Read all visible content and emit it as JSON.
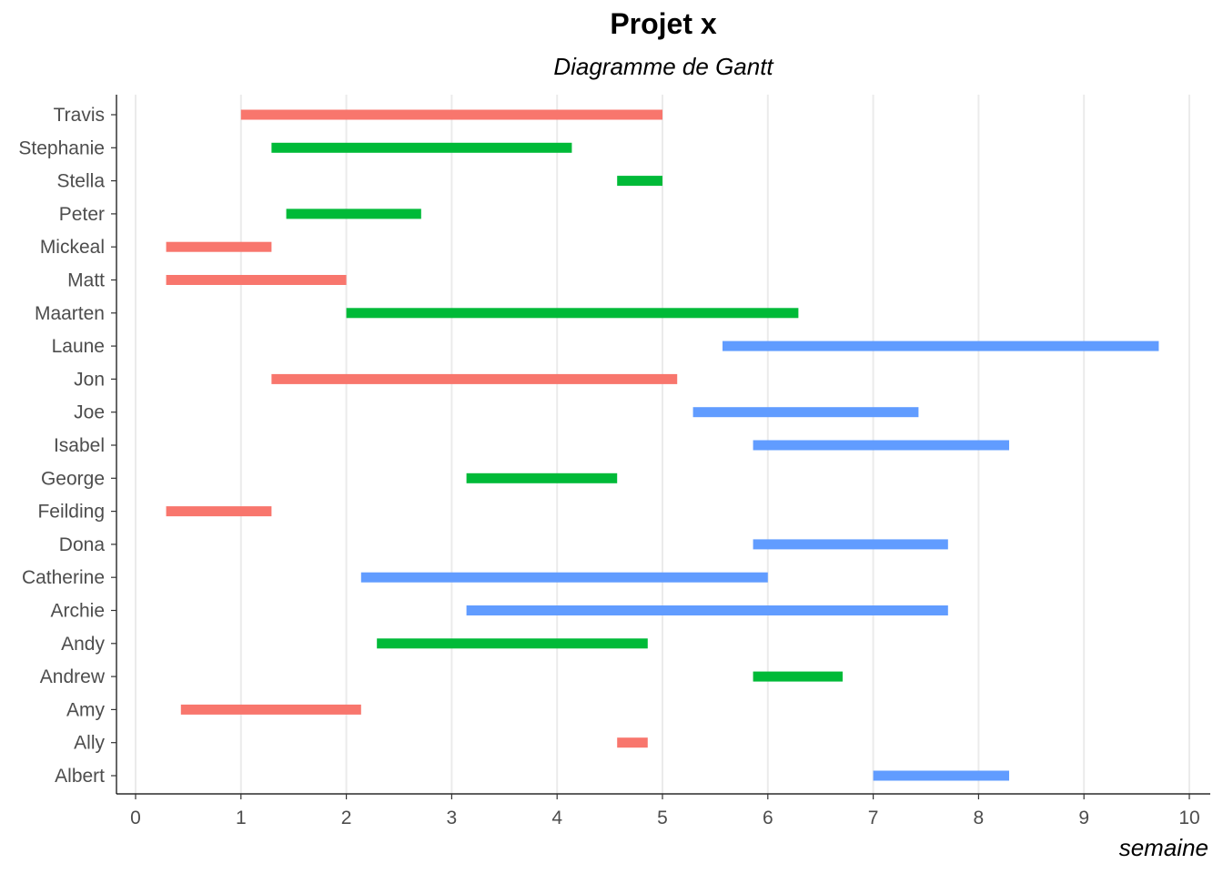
{
  "chart_data": {
    "type": "gantt",
    "title": "Projet x",
    "subtitle": "Diagramme de Gantt",
    "xlabel": "semaine",
    "ylabel": "",
    "xlim": [
      0,
      10
    ],
    "xticks": [
      0,
      1,
      2,
      3,
      4,
      5,
      6,
      7,
      8,
      9,
      10
    ],
    "grid": "vertical",
    "legend": "none",
    "colors": {
      "red": "#F8766D",
      "green": "#00BA38",
      "blue": "#619CFF"
    },
    "tasks": [
      {
        "name": "Travis",
        "start": 1.0,
        "end": 5.0,
        "color": "red"
      },
      {
        "name": "Stephanie",
        "start": 1.29,
        "end": 4.14,
        "color": "green"
      },
      {
        "name": "Stella",
        "start": 4.57,
        "end": 5.0,
        "color": "green"
      },
      {
        "name": "Peter",
        "start": 1.43,
        "end": 2.71,
        "color": "green"
      },
      {
        "name": "Mickeal",
        "start": 0.29,
        "end": 1.29,
        "color": "red"
      },
      {
        "name": "Matt",
        "start": 0.29,
        "end": 2.0,
        "color": "red"
      },
      {
        "name": "Maarten",
        "start": 2.0,
        "end": 6.29,
        "color": "green"
      },
      {
        "name": "Laune",
        "start": 5.57,
        "end": 9.71,
        "color": "blue"
      },
      {
        "name": "Jon",
        "start": 1.29,
        "end": 5.14,
        "color": "red"
      },
      {
        "name": "Joe",
        "start": 5.29,
        "end": 7.43,
        "color": "blue"
      },
      {
        "name": "Isabel",
        "start": 5.86,
        "end": 8.29,
        "color": "blue"
      },
      {
        "name": "George",
        "start": 3.14,
        "end": 4.57,
        "color": "green"
      },
      {
        "name": "Feilding",
        "start": 0.29,
        "end": 1.29,
        "color": "red"
      },
      {
        "name": "Dona",
        "start": 5.86,
        "end": 7.71,
        "color": "blue"
      },
      {
        "name": "Catherine",
        "start": 2.14,
        "end": 6.0,
        "color": "blue"
      },
      {
        "name": "Archie",
        "start": 3.14,
        "end": 7.71,
        "color": "blue"
      },
      {
        "name": "Andy",
        "start": 2.29,
        "end": 4.86,
        "color": "green"
      },
      {
        "name": "Andrew",
        "start": 5.86,
        "end": 6.71,
        "color": "green"
      },
      {
        "name": "Amy",
        "start": 0.43,
        "end": 2.14,
        "color": "red"
      },
      {
        "name": "Ally",
        "start": 4.57,
        "end": 4.86,
        "color": "red"
      },
      {
        "name": "Albert",
        "start": 7.0,
        "end": 8.29,
        "color": "blue"
      }
    ]
  }
}
